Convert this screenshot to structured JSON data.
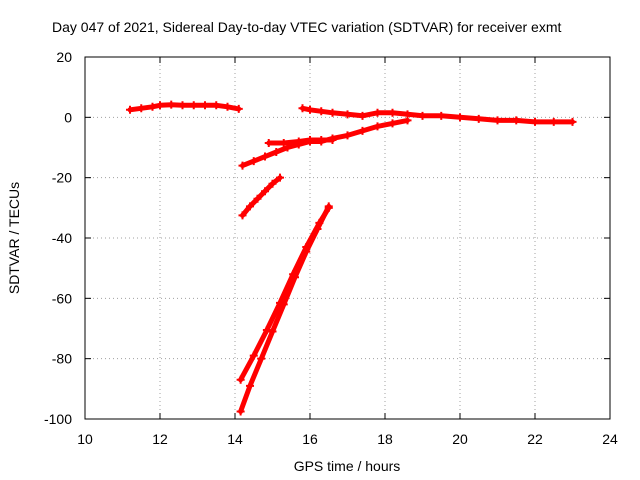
{
  "chart_data": {
    "type": "scatter",
    "title": "Day 047 of 2021, Sidereal Day-to-day VTEC variation (SDTVAR) for receiver exmt",
    "xlabel": "GPS time / hours",
    "ylabel": "SDTVAR / TECUs",
    "xlim": [
      10,
      24
    ],
    "ylim": [
      -100,
      20
    ],
    "xticks": [
      "10",
      "12",
      "14",
      "16",
      "18",
      "20",
      "22",
      "24"
    ],
    "yticks": [
      "20",
      "0",
      "-20",
      "-40",
      "-60",
      "-80",
      "-100"
    ],
    "grid": true,
    "marker": "plus",
    "color": "#ff0000",
    "series": [
      {
        "x": [
          11.2,
          11.5,
          11.8,
          12.0,
          12.3,
          12.6,
          12.9,
          13.2,
          13.5,
          13.8,
          14.1
        ],
        "y": [
          2.5,
          3,
          3.5,
          4,
          4.2,
          4,
          4,
          4,
          4,
          3.5,
          2.8
        ]
      },
      {
        "x": [
          15.8,
          16.0,
          16.3,
          16.6,
          17.0,
          17.4,
          17.8,
          18.2,
          18.6,
          19.0,
          19.5,
          20.0,
          20.5,
          21.0,
          21.5,
          22.0,
          22.5,
          23.0
        ],
        "y": [
          3,
          2.5,
          2,
          1.5,
          1,
          0.5,
          1.5,
          1.5,
          1,
          0.5,
          0.5,
          0,
          -0.5,
          -1,
          -1,
          -1.5,
          -1.5,
          -1.5
        ]
      },
      {
        "x": [
          14.2,
          14.5,
          14.8,
          15.1,
          15.4,
          15.7,
          16.0,
          16.3,
          16.6,
          17.0,
          17.4,
          17.8,
          18.2,
          18.6
        ],
        "y": [
          -16,
          -14.5,
          -13,
          -11.5,
          -10,
          -9,
          -8,
          -8,
          -7,
          -6,
          -4.5,
          -3,
          -2,
          -1
        ]
      },
      {
        "x": [
          14.9,
          15.3,
          15.7,
          16.0,
          16.3,
          16.6
        ],
        "y": [
          -8.5,
          -8.5,
          -8,
          -7.5,
          -7.5,
          -7.5
        ]
      },
      {
        "x": [
          14.2,
          14.4,
          14.6,
          14.8,
          15.0,
          15.2
        ],
        "y": [
          -32.5,
          -29.5,
          -27,
          -24.5,
          -22,
          -20
        ]
      },
      {
        "x": [
          14.15,
          14.4,
          14.7,
          15.0,
          15.3,
          15.6,
          15.9,
          16.2,
          16.5
        ],
        "y": [
          -97.5,
          -89,
          -80,
          -71,
          -62,
          -53,
          -44.5,
          -37,
          -29.5
        ]
      },
      {
        "x": [
          14.15,
          14.5,
          14.85,
          15.2,
          15.55,
          15.9,
          16.25,
          16.5
        ],
        "y": [
          -87,
          -79,
          -70.5,
          -61.5,
          -52,
          -43,
          -35,
          -30
        ]
      }
    ]
  }
}
